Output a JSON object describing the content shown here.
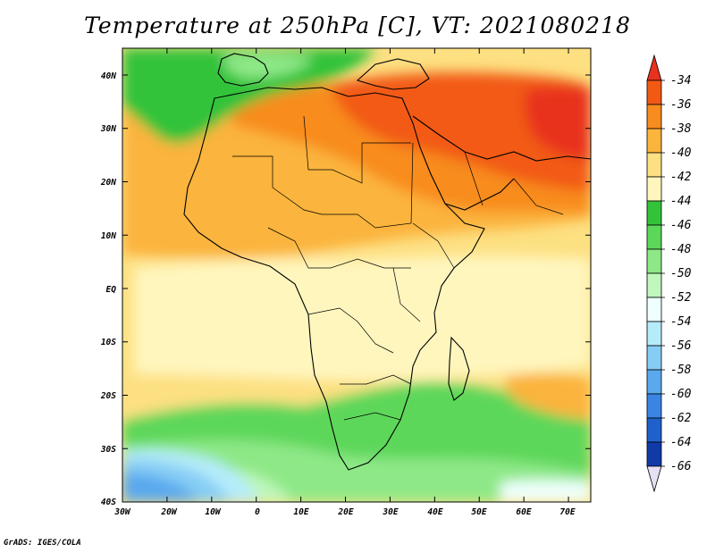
{
  "title": "Temperature at 250hPa [C], VT: 2021080218",
  "credit": "GrADS: IGES/COLA",
  "map": {
    "lon_labels": [
      "30W",
      "20W",
      "10W",
      "0",
      "10E",
      "20E",
      "30E",
      "40E",
      "50E",
      "60E",
      "70E"
    ],
    "lat_labels": [
      "40N",
      "30N",
      "20N",
      "10N",
      "EQ",
      "10S",
      "20S",
      "30S",
      "40S"
    ]
  },
  "colorbar": {
    "labels": [
      "-34",
      "-36",
      "-38",
      "-40",
      "-42",
      "-44",
      "-46",
      "-48",
      "-50",
      "-52",
      "-54",
      "-56",
      "-58",
      "-60",
      "-62",
      "-64",
      "-66"
    ],
    "colors": [
      "#e8321e",
      "#f25a14",
      "#f88c1e",
      "#fbb43c",
      "#fde082",
      "#fff6be",
      "#33c33a",
      "#5dd75a",
      "#8ee887",
      "#bff7bc",
      "#eefffd",
      "#b5ecfa",
      "#86cdf5",
      "#5aa9ee",
      "#3a85e3",
      "#1f60cc",
      "#0f3aa8",
      "#082080"
    ]
  }
}
